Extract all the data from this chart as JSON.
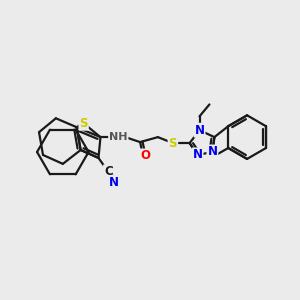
{
  "background_color": "#ebebeb",
  "bond_color": "#1a1a1a",
  "atom_colors": {
    "N": "#0000ee",
    "S": "#cccc00",
    "O": "#ff0000",
    "C": "#1a1a1a",
    "H": "#555555"
  },
  "font_size": 8.5,
  "fig_size": [
    3.0,
    3.0
  ],
  "dpi": 100
}
